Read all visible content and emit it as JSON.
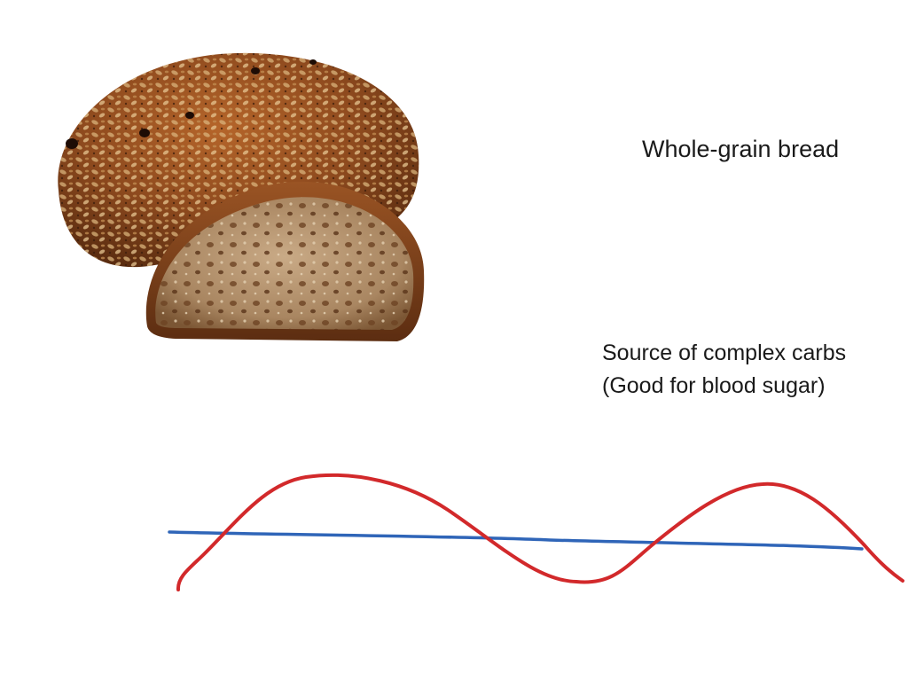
{
  "slide": {
    "title": "Whole-grain bread",
    "note_lines": [
      "Source of complex carbs",
      "(Good for blood sugar)"
    ]
  },
  "image": {
    "subject": "whole-grain-bread-loaf"
  },
  "sketch": {
    "wave_color": "#d2292b",
    "baseline_color": "#2f65b8"
  },
  "colors": {
    "background": "#ffffff",
    "text": "#1a1a1a"
  }
}
